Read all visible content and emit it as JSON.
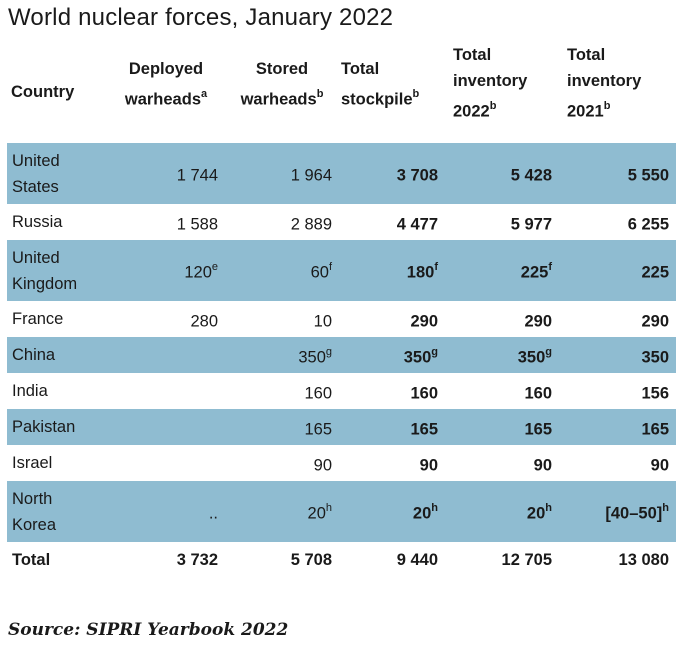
{
  "title": "World nuclear forces, January 2022",
  "headers": [
    {
      "text": "Country",
      "sup": ""
    },
    {
      "text": "Deployed warheads",
      "sup": "a"
    },
    {
      "text": "Stored warheads",
      "sup": "b"
    },
    {
      "text": "Total stockpile",
      "sup": "b"
    },
    {
      "text": "Total inventory 2022",
      "sup": "b"
    },
    {
      "text": "Total inventory 2021",
      "sup": "b"
    }
  ],
  "rows": [
    {
      "country": "United States",
      "cells": [
        {
          "v": "1 744",
          "s": ""
        },
        {
          "v": "1 964",
          "s": ""
        },
        {
          "v": "3 708",
          "s": ""
        },
        {
          "v": "5 428",
          "s": ""
        },
        {
          "v": "5 550",
          "s": ""
        }
      ]
    },
    {
      "country": "Russia",
      "cells": [
        {
          "v": "1 588",
          "s": ""
        },
        {
          "v": "2 889",
          "s": ""
        },
        {
          "v": "4 477",
          "s": ""
        },
        {
          "v": "5 977",
          "s": ""
        },
        {
          "v": "6 255",
          "s": ""
        }
      ]
    },
    {
      "country": "United Kingdom",
      "cells": [
        {
          "v": "120",
          "s": "e"
        },
        {
          "v": "60",
          "s": "f"
        },
        {
          "v": "180",
          "s": "f"
        },
        {
          "v": "225",
          "s": "f"
        },
        {
          "v": "225",
          "s": ""
        }
      ]
    },
    {
      "country": "France",
      "cells": [
        {
          "v": "280",
          "s": ""
        },
        {
          "v": "10",
          "s": ""
        },
        {
          "v": "290",
          "s": ""
        },
        {
          "v": "290",
          "s": ""
        },
        {
          "v": "290",
          "s": ""
        }
      ]
    },
    {
      "country": "China",
      "cells": [
        {
          "v": "",
          "s": ""
        },
        {
          "v": "350",
          "s": "g"
        },
        {
          "v": "350",
          "s": "g"
        },
        {
          "v": "350",
          "s": "g"
        },
        {
          "v": "350",
          "s": ""
        }
      ]
    },
    {
      "country": "India",
      "cells": [
        {
          "v": "",
          "s": ""
        },
        {
          "v": "160",
          "s": ""
        },
        {
          "v": "160",
          "s": ""
        },
        {
          "v": "160",
          "s": ""
        },
        {
          "v": "156",
          "s": ""
        }
      ]
    },
    {
      "country": "Pakistan",
      "cells": [
        {
          "v": "",
          "s": ""
        },
        {
          "v": "165",
          "s": ""
        },
        {
          "v": "165",
          "s": ""
        },
        {
          "v": "165",
          "s": ""
        },
        {
          "v": "165",
          "s": ""
        }
      ]
    },
    {
      "country": "Israel",
      "cells": [
        {
          "v": "",
          "s": ""
        },
        {
          "v": "90",
          "s": ""
        },
        {
          "v": "90",
          "s": ""
        },
        {
          "v": "90",
          "s": ""
        },
        {
          "v": "90",
          "s": ""
        }
      ]
    },
    {
      "country": "North Korea",
      "cells": [
        {
          "v": "..",
          "s": ""
        },
        {
          "v": "20",
          "s": "h"
        },
        {
          "v": "20",
          "s": "h"
        },
        {
          "v": "20",
          "s": "h"
        },
        {
          "v": "[40–50]",
          "s": "h"
        }
      ]
    }
  ],
  "total": {
    "label": "Total",
    "cells": [
      "3 732",
      "5 708",
      "9 440",
      "12 705",
      "13 080"
    ]
  },
  "source": "Source: SIPRI Yearbook 2022",
  "colors": {
    "shade": "#8fbcd1",
    "text": "#1a1a1a"
  },
  "chart_data": {
    "type": "table",
    "title": "World nuclear forces, January 2022",
    "columns": [
      "Country",
      "Deployed warheads",
      "Stored warheads",
      "Total stockpile",
      "Total inventory 2022",
      "Total inventory 2021"
    ],
    "rows": [
      [
        "United States",
        1744,
        1964,
        3708,
        5428,
        5550
      ],
      [
        "Russia",
        1588,
        2889,
        4477,
        5977,
        6255
      ],
      [
        "United Kingdom",
        120,
        60,
        180,
        225,
        225
      ],
      [
        "France",
        280,
        10,
        290,
        290,
        290
      ],
      [
        "China",
        null,
        350,
        350,
        350,
        350
      ],
      [
        "India",
        null,
        160,
        160,
        160,
        156
      ],
      [
        "Pakistan",
        null,
        165,
        165,
        165,
        165
      ],
      [
        "Israel",
        null,
        90,
        90,
        90,
        90
      ],
      [
        "North Korea",
        null,
        20,
        20,
        20,
        "[40–50]"
      ],
      [
        "Total",
        3732,
        5708,
        9440,
        12705,
        13080
      ]
    ]
  }
}
